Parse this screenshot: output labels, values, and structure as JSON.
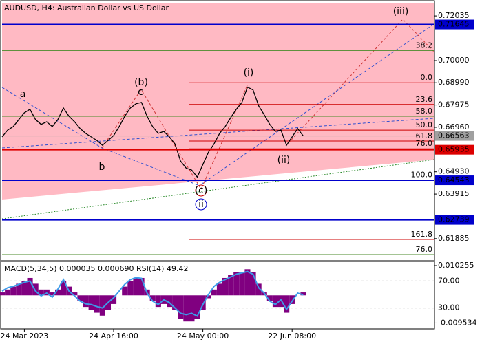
{
  "chart_data": [
    {
      "type": "line",
      "title": "AUDUSD, H4:  Australian Dollar vs US Dollar",
      "categories": [
        null,
        null,
        null,
        null,
        "24 Mar 2023",
        null,
        null,
        null,
        null,
        null,
        null,
        null,
        null,
        null,
        null,
        null,
        null,
        null,
        null,
        null,
        "24 Apr 16:00",
        null,
        null,
        null,
        null,
        null,
        null,
        null,
        null,
        null,
        null,
        null,
        null,
        null,
        null,
        null,
        "24 May 00:00",
        null,
        null,
        null,
        null,
        null,
        null,
        null,
        null,
        null,
        null,
        null,
        null,
        null,
        null,
        null,
        "22 Jun 08:00",
        null,
        null
      ],
      "series": [
        {
          "color": "#000000",
          "values": [
            0.6652,
            0.6683,
            0.6699,
            0.6731,
            0.6762,
            0.6778,
            0.6731,
            0.6709,
            0.6721,
            0.6699,
            0.6731,
            0.6784,
            0.6746,
            0.6721,
            0.669,
            0.6668,
            0.6652,
            0.6636,
            0.6614,
            0.6636,
            0.6658,
            0.6699,
            0.6746,
            0.6784,
            0.6803,
            0.6809,
            0.6746,
            0.6699,
            0.6668,
            0.6677,
            0.6652,
            0.662,
            0.6542,
            0.651,
            0.6501,
            0.6469,
            0.6526,
            0.6582,
            0.662,
            0.6668,
            0.6699,
            0.674,
            0.6778,
            0.6809,
            0.6879,
            0.6866,
            0.6794,
            0.6753,
            0.6709,
            0.6677,
            0.6683,
            0.6614,
            0.6652,
            0.669,
            0.66563
          ]
        }
      ],
      "ylim": [
        0.60908,
        0.72665
      ],
      "yticks": [
        0.72035,
        {
          "value": 0.7,
          "label": "0.70000"
        },
        {
          "value": 0.6899,
          "label": "0.68990"
        },
        0.67975,
        {
          "value": 0.6696,
          "label": "0.66960"
        },
        {
          "value": 0.6493,
          "label": "0.64930"
        },
        0.63915,
        0.61885
      ],
      "hlines": [
        {
          "value": 0.71645,
          "color": "#0000cc"
        },
        {
          "value": 0.66563,
          "color": "#a0a0a0"
        },
        {
          "value": 0.65935,
          "color": "#dd0000"
        },
        {
          "value": 0.64543,
          "color": "#0000cc"
        },
        {
          "value": 0.62739,
          "color": "#0000cc"
        }
      ],
      "fib_levels": [
        {
          "label": "38.2",
          "value": 0.7046,
          "color": "#4a8a2a"
        },
        {
          "label": "58.0",
          "value": 0.6746,
          "color": "#4a8a2a"
        },
        {
          "label": "76.0",
          "value": 0.6116,
          "color": "#4a8a2a"
        },
        {
          "label": "0.0",
          "value": 0.6899,
          "color": "#cc0000"
        },
        {
          "label": "23.6",
          "value": 0.68,
          "color": "#cc0000"
        },
        {
          "label": "50.0",
          "value": 0.6683,
          "color": "#cc0000"
        },
        {
          "label": "61.8",
          "value": 0.6633,
          "color": "#cc0000"
        },
        {
          "label": "76.0",
          "value": 0.6598,
          "color": "#cc0000"
        },
        {
          "label": "100.0",
          "value": 0.6456,
          "color": "#cc0000"
        },
        {
          "label": "161.8",
          "value": 0.6185,
          "color": "#cc0000"
        }
      ],
      "annotations": [
        {
          "text": "(iii)",
          "color": "#cc0000"
        },
        {
          "text": "(b)",
          "color": "#cc0000"
        },
        {
          "text": "(i)",
          "color": "#cc0000"
        },
        {
          "text": "(ii)",
          "color": "#cc0000"
        },
        {
          "text": "(c)",
          "color": "#cc0000"
        },
        {
          "text": "ii",
          "color": "#0000cc"
        },
        {
          "text": "a",
          "color": "#808080"
        },
        {
          "text": "b",
          "color": "#808080"
        },
        {
          "text": "c",
          "color": "#808080"
        }
      ]
    },
    {
      "type": "macd",
      "title": "MACD(5,34,5) 0.000035 0.000690 RSI(14) 49.42",
      "ylim": [
        -0.01132,
        0.01192
      ],
      "yticks": [
        0.010255,
        -0.009534
      ],
      "y2lim": [
        0,
        100
      ],
      "y2ticks": [
        {
          "value": 70,
          "label": "70.00"
        },
        {
          "value": 30,
          "label": "30.00"
        }
      ],
      "series": [
        {
          "color": "#800080",
          "values": [
            0.001,
            0.002,
            0.003,
            0.004,
            0.005,
            0.006,
            0.004,
            0.002,
            0.002,
            0.001,
            0.002,
            0.005,
            0.003,
            0.001,
            -0.002,
            -0.004,
            -0.005,
            -0.006,
            -0.007,
            -0.005,
            -0.003,
            0,
            0.003,
            0.005,
            0.006,
            0.006,
            0.002,
            -0.002,
            -0.004,
            -0.003,
            -0.004,
            -0.005,
            -0.008,
            -0.009,
            -0.009,
            -0.008,
            -0.005,
            -0.001,
            0.002,
            0.004,
            0.006,
            0.007,
            0.008,
            0.008,
            0.009,
            0.008,
            0.004,
            0.001,
            -0.002,
            -0.004,
            -0.004,
            -0.006,
            -0.003,
            0,
            0.001
          ]
        },
        {
          "color": "#3d9be9",
          "axis": "y2",
          "values": [
            55,
            60,
            62,
            65,
            68,
            70,
            55,
            48,
            52,
            46,
            58,
            72,
            55,
            48,
            40,
            36,
            35,
            32,
            30,
            38,
            45,
            55,
            65,
            72,
            75,
            74,
            52,
            40,
            35,
            42,
            38,
            30,
            22,
            20,
            22,
            18,
            35,
            50,
            62,
            68,
            72,
            76,
            80,
            82,
            84,
            80,
            60,
            52,
            40,
            35,
            42,
            28,
            40,
            52,
            49.42
          ]
        }
      ]
    }
  ]
}
